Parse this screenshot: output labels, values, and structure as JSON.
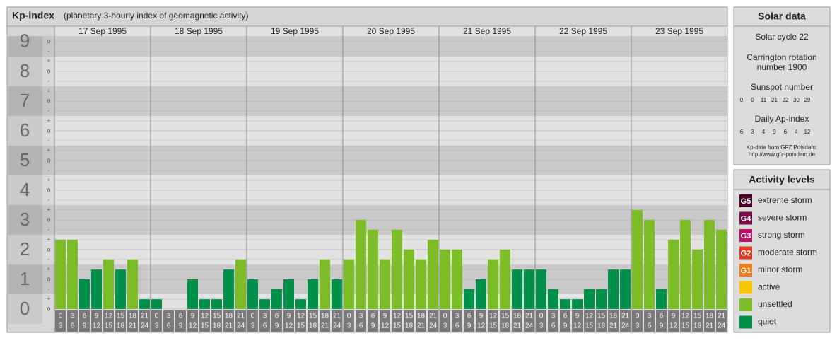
{
  "chart_data": {
    "type": "bar",
    "title": "Kp-index",
    "subtitle": "(planetary 3-hourly index of geomagnetic activity)",
    "ylim": [
      0,
      9.33
    ],
    "yticks": [
      0,
      1,
      2,
      3,
      4,
      5,
      6,
      7,
      8,
      9
    ],
    "sublabels": [
      "-",
      "o",
      "+"
    ],
    "hours": [
      {
        "start": "0",
        "end": "3"
      },
      {
        "start": "3",
        "end": "6"
      },
      {
        "start": "6",
        "end": "9"
      },
      {
        "start": "9",
        "end": "12"
      },
      {
        "start": "12",
        "end": "15"
      },
      {
        "start": "15",
        "end": "18"
      },
      {
        "start": "18",
        "end": "21"
      },
      {
        "start": "21",
        "end": "24"
      }
    ],
    "series": [
      {
        "name": "17 Sep 1995",
        "values": [
          2.33,
          2.33,
          1,
          1.33,
          1.67,
          1.33,
          1.67,
          0.33
        ],
        "colors": [
          "#7cbd27",
          "#7cbd27",
          "#00904a",
          "#00904a",
          "#7cbd27",
          "#00904a",
          "#7cbd27",
          "#00904a"
        ]
      },
      {
        "name": "18 Sep 1995",
        "values": [
          0.33,
          0,
          0,
          1,
          0.33,
          0.33,
          1.33,
          1.67
        ],
        "colors": [
          "#00904a",
          "#00904a",
          "#00904a",
          "#00904a",
          "#00904a",
          "#00904a",
          "#00904a",
          "#7cbd27"
        ]
      },
      {
        "name": "19 Sep 1995",
        "values": [
          1,
          0.33,
          0.67,
          1,
          0.33,
          1,
          1.67,
          1
        ],
        "colors": [
          "#00904a",
          "#00904a",
          "#00904a",
          "#00904a",
          "#00904a",
          "#00904a",
          "#7cbd27",
          "#00904a"
        ]
      },
      {
        "name": "20 Sep 1995",
        "values": [
          1.67,
          3,
          2.67,
          1.67,
          2.67,
          2,
          1.67,
          2.33
        ],
        "colors": [
          "#7cbd27",
          "#7cbd27",
          "#7cbd27",
          "#7cbd27",
          "#7cbd27",
          "#7cbd27",
          "#7cbd27",
          "#7cbd27"
        ]
      },
      {
        "name": "21 Sep 1995",
        "values": [
          2,
          2,
          0.67,
          1,
          1.67,
          2,
          1.33,
          1.33
        ],
        "colors": [
          "#7cbd27",
          "#7cbd27",
          "#00904a",
          "#00904a",
          "#7cbd27",
          "#7cbd27",
          "#00904a",
          "#00904a"
        ]
      },
      {
        "name": "22 Sep 1995",
        "values": [
          1.33,
          0.67,
          0.33,
          0.33,
          0.67,
          0.67,
          1.33,
          1.33
        ],
        "colors": [
          "#00904a",
          "#00904a",
          "#00904a",
          "#00904a",
          "#00904a",
          "#00904a",
          "#00904a",
          "#00904a"
        ]
      },
      {
        "name": "23 Sep 1995",
        "values": [
          3.33,
          3,
          0.67,
          2.33,
          3,
          2,
          3,
          2.67
        ],
        "colors": [
          "#7cbd27",
          "#7cbd27",
          "#00904a",
          "#7cbd27",
          "#7cbd27",
          "#7cbd27",
          "#7cbd27",
          "#7cbd27"
        ]
      }
    ]
  },
  "solar": {
    "title": "Solar data",
    "cycle": "Solar cycle 22",
    "carrington": "Carrington rotation number 1900",
    "sunspot_title": "Sunspot number",
    "sunspot": [
      "0",
      "0",
      "11",
      "21",
      "22",
      "30",
      "29"
    ],
    "ap_title": "Daily Ap-index",
    "ap": [
      "6",
      "3",
      "4",
      "9",
      "6",
      "4",
      "12"
    ],
    "source": "Kp-data from GFZ Potsdam:",
    "url": "http://www.gfz-potsdam.de"
  },
  "activity": {
    "title": "Activity levels",
    "levels": [
      {
        "code": "G5",
        "name": "extreme storm",
        "color": "#4a0026"
      },
      {
        "code": "G4",
        "name": "severe storm",
        "color": "#7a0a4a"
      },
      {
        "code": "G3",
        "name": "strong storm",
        "color": "#c0106a"
      },
      {
        "code": "G2",
        "name": "moderate storm",
        "color": "#e03a1e"
      },
      {
        "code": "G1",
        "name": "minor storm",
        "color": "#ee7d1a"
      },
      {
        "code": null,
        "name": "active",
        "color": "#f8c400"
      },
      {
        "code": null,
        "name": "unsettled",
        "color": "#7cbd27"
      },
      {
        "code": null,
        "name": "quiet",
        "color": "#00904a"
      }
    ]
  }
}
